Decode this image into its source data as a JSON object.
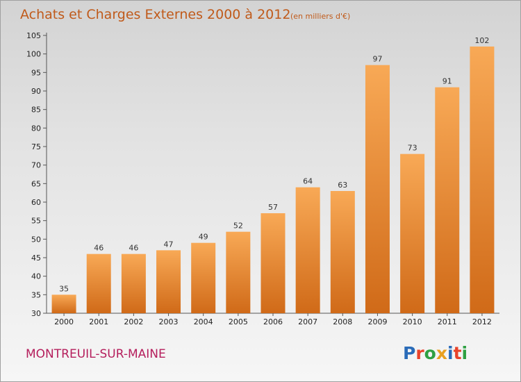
{
  "title": "Achats et Charges Externes 2000 à 2012",
  "subtitle": "(en milliers d'€)",
  "commune": "MONTREUIL-SUR-MAINE",
  "logo": {
    "text": "Proxiti",
    "letter_colors": [
      "#2a6bb8",
      "#e9432a",
      "#2ea042",
      "#e8a020",
      "#2a6bb8",
      "#e9432a",
      "#2ea042"
    ]
  },
  "colors": {
    "bar_light": "#f8a956",
    "bar_dark": "#d06a18",
    "title": "#c05a1a",
    "commune": "#b51e5c"
  },
  "chart_data": {
    "type": "bar",
    "title": "Achats et Charges Externes 2000 à 2012",
    "subtitle": "(en milliers d'€)",
    "categories": [
      "2000",
      "2001",
      "2002",
      "2003",
      "2004",
      "2005",
      "2006",
      "2007",
      "2008",
      "2009",
      "2010",
      "2011",
      "2012"
    ],
    "values": [
      35,
      46,
      46,
      47,
      49,
      52,
      57,
      64,
      63,
      97,
      73,
      91,
      102
    ],
    "ylim": [
      30,
      105
    ],
    "yticks": [
      30,
      35,
      40,
      45,
      50,
      55,
      60,
      65,
      70,
      75,
      80,
      85,
      90,
      95,
      100,
      105
    ],
    "grid": false,
    "legend": "none"
  }
}
